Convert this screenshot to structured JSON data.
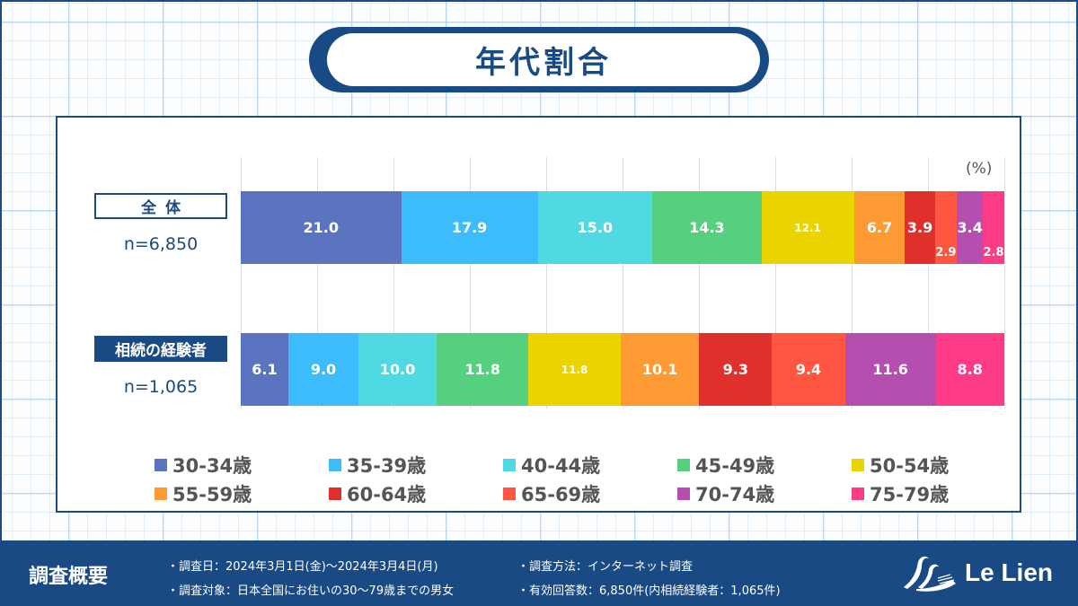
{
  "title": "年代割合",
  "unit_label": "(%)",
  "rows": [
    {
      "label": "全体",
      "n": "n=6,850"
    },
    {
      "label": "相続の経験者",
      "n": "n=1,065"
    }
  ],
  "colors": [
    "#5a74c0",
    "#3dbcfc",
    "#4fd9e3",
    "#55d07f",
    "#ebd300",
    "#fe9a33",
    "#e0302c",
    "#fe5640",
    "#b44fb0",
    "#fe3b87"
  ],
  "legend": [
    "30-34歳",
    "35-39歳",
    "40-44歳",
    "45-49歳",
    "50-54歳",
    "55-59歳",
    "60-64歳",
    "65-69歳",
    "70-74歳",
    "75-79歳"
  ],
  "chart_data": {
    "type": "bar",
    "orientation": "horizontal",
    "stacked": "100%",
    "title": "年代割合",
    "categories": [
      "全体 (n=6,850)",
      "相続の経験者 (n=1,065)"
    ],
    "series": [
      {
        "name": "30-34歳",
        "values": [
          21.0,
          6.1
        ]
      },
      {
        "name": "35-39歳",
        "values": [
          17.9,
          9.0
        ]
      },
      {
        "name": "40-44歳",
        "values": [
          15.0,
          10.0
        ]
      },
      {
        "name": "45-49歳",
        "values": [
          14.3,
          11.8
        ]
      },
      {
        "name": "50-54歳",
        "values": [
          12.1,
          11.8
        ]
      },
      {
        "name": "55-59歳",
        "values": [
          6.7,
          10.1
        ]
      },
      {
        "name": "60-64歳",
        "values": [
          3.9,
          9.3
        ]
      },
      {
        "name": "65-69歳",
        "values": [
          2.9,
          9.4
        ]
      },
      {
        "name": "70-74歳",
        "values": [
          3.4,
          11.6
        ]
      },
      {
        "name": "75-79歳",
        "values": [
          2.8,
          8.8
        ]
      }
    ],
    "xlabel": "",
    "ylabel": "",
    "unit": "(%)",
    "xlim": [
      0,
      100
    ],
    "grid": true,
    "legend_position": "bottom"
  },
  "bars": [
    {
      "segments": [
        {
          "v": 21.0,
          "label": "21.0"
        },
        {
          "v": 17.9,
          "label": "17.9"
        },
        {
          "v": 15.0,
          "label": "15.0"
        },
        {
          "v": 14.3,
          "label": "14.3"
        },
        {
          "v": 12.1,
          "label": "12.1"
        },
        {
          "v": 6.7,
          "label": "6.7"
        },
        {
          "v": 3.9,
          "label": "3.9"
        },
        {
          "v": 2.9,
          "label": "2.9"
        },
        {
          "v": 3.4,
          "label": "3.4"
        },
        {
          "v": 2.8,
          "label": "2.8"
        }
      ]
    },
    {
      "segments": [
        {
          "v": 6.1,
          "label": "6.1"
        },
        {
          "v": 9.0,
          "label": "9.0"
        },
        {
          "v": 10.0,
          "label": "10.0"
        },
        {
          "v": 11.8,
          "label": "11.8"
        },
        {
          "v": 11.8,
          "label": "11.8"
        },
        {
          "v": 10.1,
          "label": "10.1"
        },
        {
          "v": 9.3,
          "label": "9.3"
        },
        {
          "v": 9.4,
          "label": "9.4"
        },
        {
          "v": 11.6,
          "label": "11.6"
        },
        {
          "v": 8.8,
          "label": "8.8"
        }
      ]
    }
  ],
  "footer": {
    "heading": "調査概要",
    "lines": [
      "・調査日：2024年3月1日(金)～2024年3月4日(月)",
      "・調査対象：日本全国にお住いの30～79歳までの男女",
      "・調査方法：インターネット調査",
      "・有効回答数：6,850件(内相続経験者：1,065件)"
    ],
    "logo_text": "Le Lien"
  }
}
